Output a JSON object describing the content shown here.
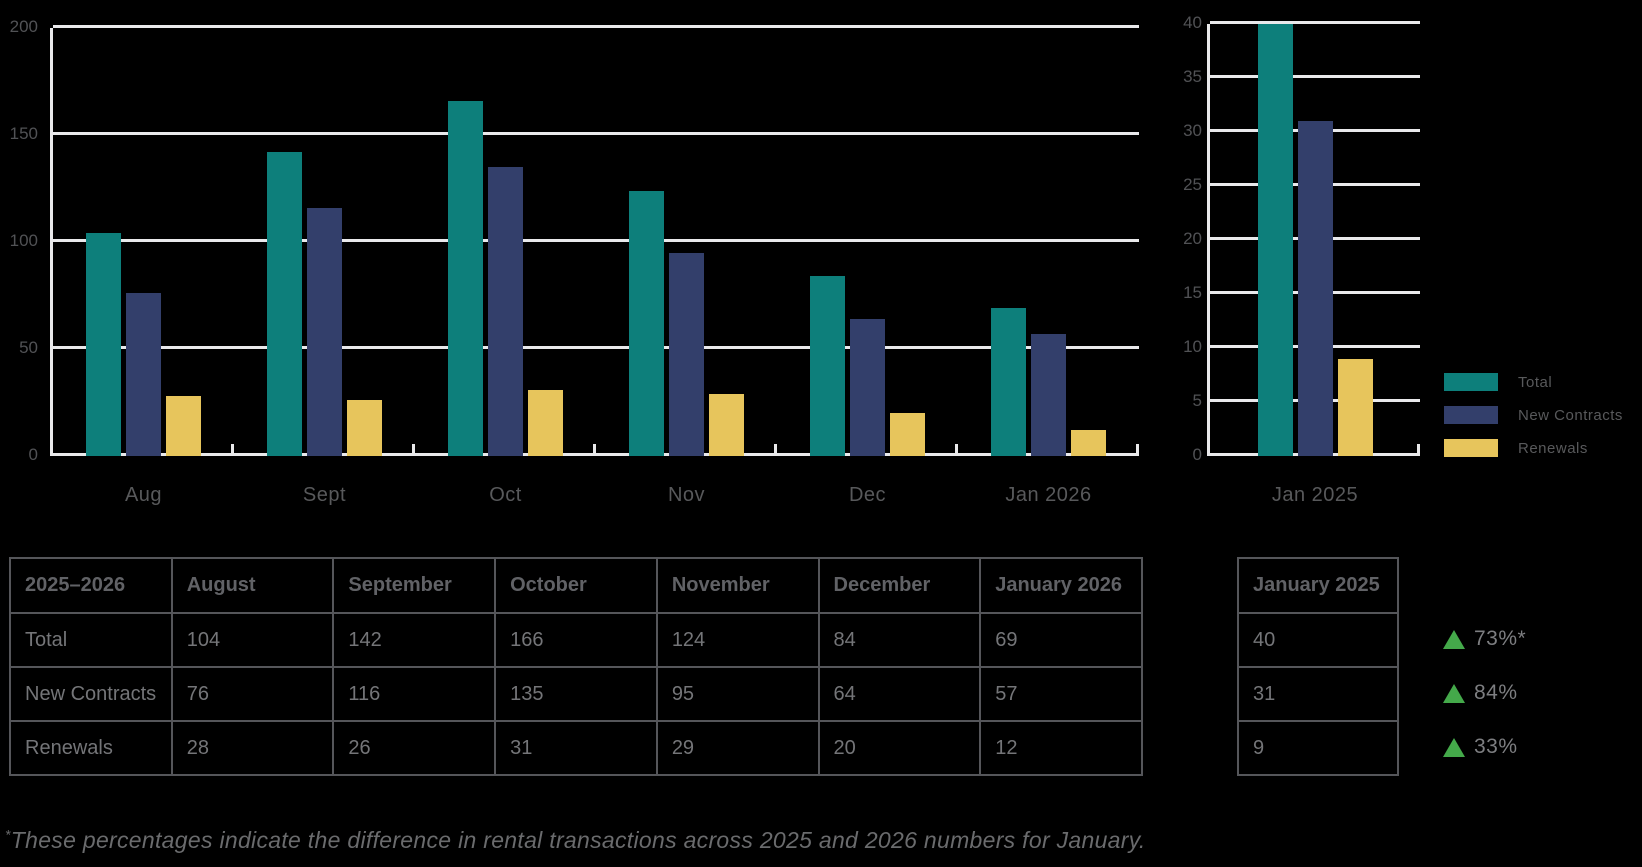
{
  "colors": {
    "teal": "#0D7F7B",
    "navy": "#333F6B",
    "yellow": "#E7C55C",
    "gridline": "#E9E9EB",
    "axis_label": "#515255",
    "category_label": "#58595B",
    "table_border": "#55565A",
    "table_header_text": "#616266",
    "table_text": "#747578",
    "delta_green": "#44A94A",
    "footnote_text": "#6A6B6D",
    "background": "#000000"
  },
  "chart_data": [
    {
      "type": "bar",
      "title": "",
      "xlabel": "",
      "ylabel": "",
      "categories": [
        "Aug",
        "Sept",
        "Oct",
        "Nov",
        "Dec",
        "Jan 2026"
      ],
      "series": [
        {
          "name": "Total",
          "color": "#0D7F7B",
          "values": [
            104,
            142,
            166,
            124,
            84,
            69
          ]
        },
        {
          "name": "New Contracts",
          "color": "#333F6B",
          "values": [
            76,
            116,
            135,
            95,
            64,
            57
          ]
        },
        {
          "name": "Renewals",
          "color": "#E7C55C",
          "values": [
            28,
            26,
            31,
            29,
            20,
            12
          ]
        }
      ],
      "ylim": [
        0,
        200
      ],
      "ytick_step": 50,
      "grid": true,
      "legend_position": "none"
    },
    {
      "type": "bar",
      "title": "",
      "xlabel": "",
      "ylabel": "",
      "categories": [
        "Jan 2025"
      ],
      "series": [
        {
          "name": "Total",
          "color": "#0D7F7B",
          "values": [
            40
          ]
        },
        {
          "name": "New Contracts",
          "color": "#333F6B",
          "values": [
            31
          ]
        },
        {
          "name": "Renewals",
          "color": "#E7C55C",
          "values": [
            9
          ]
        }
      ],
      "ylim": [
        0,
        40
      ],
      "ytick_step": 5,
      "grid": true,
      "legend_position": "right"
    }
  ],
  "legend": {
    "items": [
      {
        "label": "Total",
        "color": "#0D7F7B"
      },
      {
        "label": "New Contracts",
        "color": "#333F6B"
      },
      {
        "label": "Renewals",
        "color": "#E7C55C"
      }
    ]
  },
  "tables": {
    "main": {
      "header": [
        "2025–2026",
        "August",
        "September",
        "October",
        "November",
        "December",
        "January 2026"
      ],
      "rows": [
        [
          "Total",
          "104",
          "142",
          "166",
          "124",
          "84",
          "69"
        ],
        [
          "New Contracts",
          "76",
          "116",
          "135",
          "95",
          "64",
          "57"
        ],
        [
          "Renewals",
          "28",
          "26",
          "31",
          "29",
          "20",
          "12"
        ]
      ]
    },
    "jan2025": {
      "header": [
        "January 2025"
      ],
      "rows": [
        [
          "40"
        ],
        [
          "31"
        ],
        [
          "9"
        ]
      ]
    }
  },
  "deltas": [
    {
      "direction": "up",
      "value": "73%*"
    },
    {
      "direction": "up",
      "value": "84%"
    },
    {
      "direction": "up",
      "value": "33%"
    }
  ],
  "footnote": {
    "asterisk": "*",
    "text": "These percentages indicate the difference in rental transactions across 2025 and 2026 numbers for January."
  }
}
